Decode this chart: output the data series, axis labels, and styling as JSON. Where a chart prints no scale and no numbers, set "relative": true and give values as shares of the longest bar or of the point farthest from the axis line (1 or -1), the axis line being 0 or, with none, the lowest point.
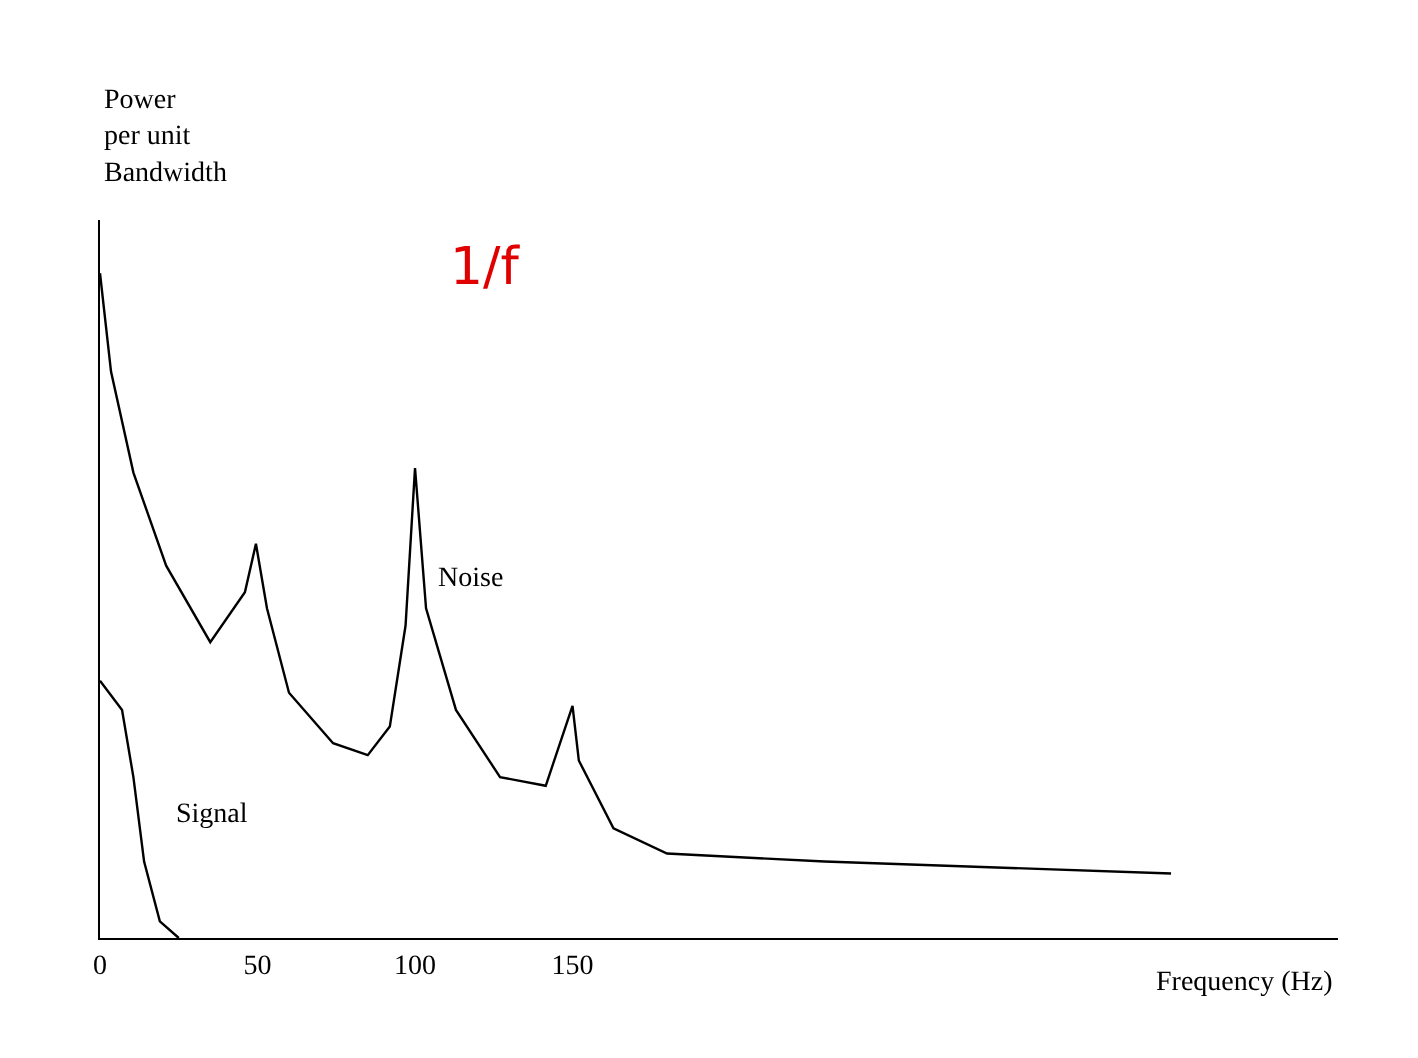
{
  "chart_data": {
    "type": "line",
    "relative": true,
    "xlabel": "Frequency (Hz)",
    "ylabel": "Power\nper unit\nBandwidth",
    "xlim": [
      0,
      393
    ],
    "xticks": [
      0,
      50,
      100,
      150
    ],
    "legend": false,
    "marker": "none",
    "line_style": "solid",
    "annotations": [
      "1/f"
    ],
    "series": [
      {
        "name": "Noise",
        "color": "#000000",
        "x": [
          0,
          3.5,
          10.6,
          21,
          35,
          46,
          49.5,
          53,
          60,
          74,
          85,
          92,
          97,
          100,
          103.5,
          113,
          127,
          141.5,
          150,
          152,
          163,
          180,
          230,
          340
        ],
        "values": [
          1.0,
          0.852,
          0.7,
          0.56,
          0.445,
          0.52,
          0.593,
          0.496,
          0.369,
          0.293,
          0.275,
          0.318,
          0.47,
          0.707,
          0.496,
          0.343,
          0.242,
          0.229,
          0.349,
          0.267,
          0.165,
          0.127,
          0.115,
          0.097
        ]
      },
      {
        "name": "Signal",
        "color": "#000000",
        "x": [
          0,
          7,
          10.6,
          14,
          19,
          25
        ],
        "values": [
          0.387,
          0.343,
          0.242,
          0.115,
          0.025,
          0
        ]
      }
    ]
  }
}
